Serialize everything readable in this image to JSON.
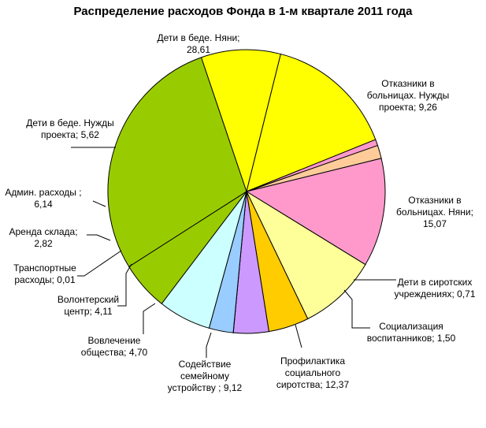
{
  "chart_data": {
    "type": "pie",
    "title": "Распределение расходов Фонда в 1-м квартале 2011 года",
    "slices": [
      {
        "label": "Дети в беде. Няни;",
        "value_label": "28,61",
        "value": 28.61,
        "color": "#99CC00"
      },
      {
        "label": "Отказники в больницах. Нужды проекта;",
        "value_label": "9,26",
        "value": 9.26,
        "color": "#FFFF00"
      },
      {
        "label": "Отказники в больницах. Няни;",
        "value_label": "15,07",
        "value": 15.07,
        "color": "#FFFF00"
      },
      {
        "label": "Дети в сиротских учреждениях;",
        "value_label": "0,71",
        "value": 0.71,
        "color": "#FF99CC"
      },
      {
        "label": "Социализация воспитанников;",
        "value_label": "1,50",
        "value": 1.5,
        "color": "#FFCC99"
      },
      {
        "label": "Профилактика социального сиротства;",
        "value_label": "12,37",
        "value": 12.37,
        "color": "#FF99CC"
      },
      {
        "label": "Содействие семейному устройству ;",
        "value_label": "9,12",
        "value": 9.12,
        "color": "#FFFF99"
      },
      {
        "label": "Вовлечение общества;",
        "value_label": "4,70",
        "value": 4.7,
        "color": "#FFCC00"
      },
      {
        "label": "Волонтерский центр;",
        "value_label": "4,11",
        "value": 4.11,
        "color": "#CC99FF"
      },
      {
        "label": "Транспортные расходы;",
        "value_label": "0,01",
        "value": 0.01,
        "color": "#FF99CC"
      },
      {
        "label": "Аренда склада;",
        "value_label": "2,82",
        "value": 2.82,
        "color": "#99CCFF"
      },
      {
        "label": "Админ. расходы ;",
        "value_label": "6,14",
        "value": 6.14,
        "color": "#CCFFFF"
      },
      {
        "label": "Дети в беде. Нужды проекта;",
        "value_label": "5,62",
        "value": 5.62,
        "color": "#99CC00"
      }
    ]
  }
}
